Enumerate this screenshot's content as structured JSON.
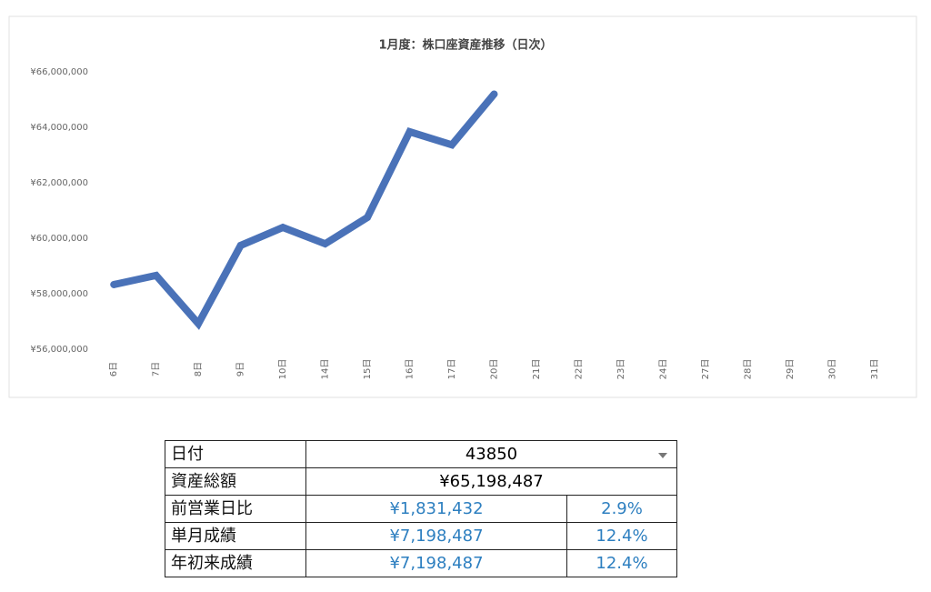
{
  "chart_data": {
    "type": "line",
    "title": "1月度：株口座資産推移（日次）",
    "categories": [
      "6日",
      "7日",
      "8日",
      "9日",
      "10日",
      "14日",
      "15日",
      "16日",
      "17日",
      "20日",
      "21日",
      "22日",
      "23日",
      "24日",
      "27日",
      "28日",
      "29日",
      "30日",
      "31日"
    ],
    "values": [
      58330000,
      58660000,
      56920000,
      59740000,
      60390000,
      59800000,
      60750000,
      63840000,
      63367055,
      65198487,
      null,
      null,
      null,
      null,
      null,
      null,
      null,
      null,
      null
    ],
    "color": "#4a72b8",
    "ylim": [
      56000000,
      66000000
    ],
    "yticks": [
      {
        "value": 56000000,
        "label": "¥56,000,000"
      },
      {
        "value": 58000000,
        "label": "¥58,000,000"
      },
      {
        "value": 60000000,
        "label": "¥60,000,000"
      },
      {
        "value": 62000000,
        "label": "¥62,000,000"
      },
      {
        "value": 64000000,
        "label": "¥64,000,000"
      },
      {
        "value": 66000000,
        "label": "¥66,000,000"
      }
    ],
    "grid": false
  },
  "table": {
    "rows": [
      [
        "日付",
        "43850"
      ],
      [
        "資産総額",
        "¥65,198,487"
      ],
      [
        "前営業日比",
        "¥1,831,432",
        "2.9%"
      ],
      [
        "単月成績",
        "¥7,198,487",
        "12.4%"
      ],
      [
        "年初来成績",
        "¥7,198,487",
        "12.4%"
      ]
    ]
  }
}
